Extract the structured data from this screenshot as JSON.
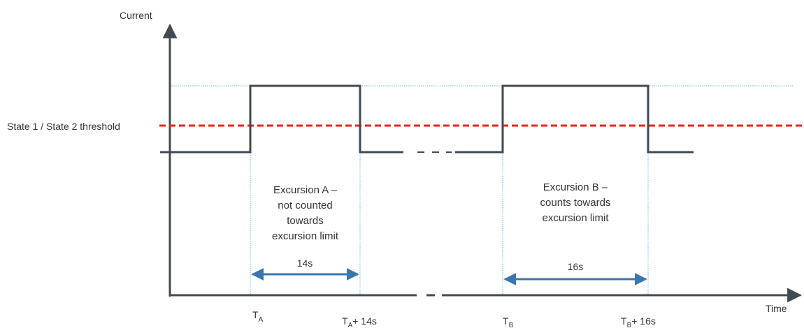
{
  "axes": {
    "y_label": "Current",
    "x_label": "Time"
  },
  "threshold": {
    "label": "State 1 / State 2 threshold",
    "color": "#e8231b"
  },
  "colors": {
    "signal": "#404a52",
    "guide": "#5bc0de",
    "dimension": "#3a77b0"
  },
  "excursions": [
    {
      "note_lines": [
        "Excursion A –",
        "not counted",
        "towards",
        "excursion limit"
      ],
      "duration": "14s",
      "start_main": "T",
      "start_sub": "A",
      "end_main": "T",
      "end_sub": "A",
      "end_suffix": "+ 14s"
    },
    {
      "note_lines": [
        "Excursion B –",
        "counts towards",
        "excursion limit"
      ],
      "duration": "16s",
      "start_main": "T",
      "start_sub": "B",
      "end_main": "T",
      "end_sub": "B",
      "end_suffix": "+ 16s"
    }
  ]
}
